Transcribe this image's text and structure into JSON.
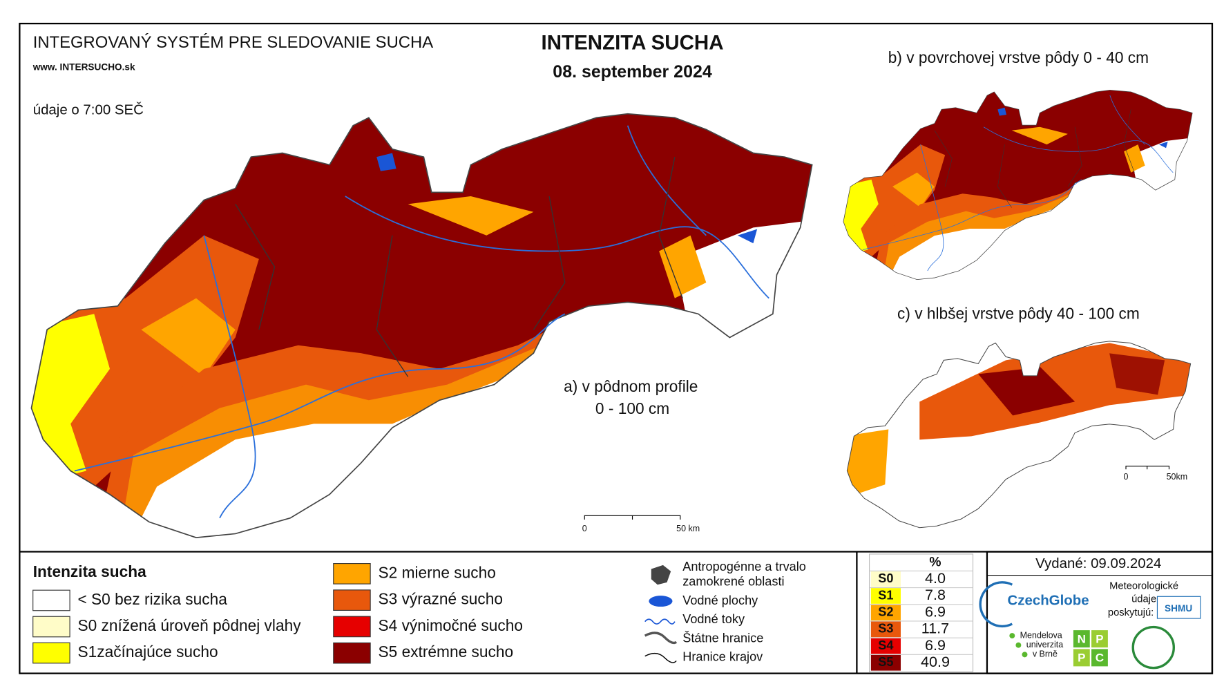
{
  "header": {
    "system_title": "INTEGROVANÝ SYSTÉM PRE SLEDOVANIE SUCHA",
    "website": "www. INTERSUCHO.sk",
    "data_time": "údaje o 7:00 SEČ",
    "title": "INTENZITA SUCHA",
    "date": "08. september 2024"
  },
  "maps": [
    {
      "label": "a) v pôdnom profile",
      "label_line2": "0 - 100 cm",
      "scale_start": "0",
      "scale_end": "50 km"
    },
    {
      "label": "b) v povrchovej vrstve pôdy 0 - 40 cm"
    },
    {
      "label": "c) v hlbšej vrstve pôdy 40 - 100 cm",
      "scale_start": "0",
      "scale_end": "50km"
    }
  ],
  "legend": {
    "title": "Intenzita sucha",
    "items": [
      {
        "label": "< S0 bez rizika sucha",
        "color": "#ffffff"
      },
      {
        "label": "S0 znížená úroveň pôdnej vlahy",
        "color": "#fffcc8"
      },
      {
        "label": "S1začínajúce sucho",
        "color": "#ffff00"
      },
      {
        "label": "S2 mierne sucho",
        "color": "#ffa500"
      },
      {
        "label": "S3 výrazné sucho",
        "color": "#e8580c"
      },
      {
        "label": "S4 výnimočné sucho",
        "color": "#e60000"
      },
      {
        "label": "S5 extrémne sucho",
        "color": "#8b0000"
      }
    ]
  },
  "symbols": [
    {
      "lines": [
        "Antropogénne a trvalo",
        "zamokrené oblasti"
      ]
    },
    {
      "lines": [
        "Vodné plochy"
      ]
    },
    {
      "lines": [
        "Vodné toky"
      ]
    },
    {
      "lines": [
        "Štátne hranice"
      ]
    },
    {
      "lines": [
        "Hranice krajov"
      ]
    }
  ],
  "stats": {
    "header": "%",
    "rows": [
      {
        "class": "S0",
        "percent": "4.0",
        "color": "#fffcc8"
      },
      {
        "class": "S1",
        "percent": "7.8",
        "color": "#ffff00"
      },
      {
        "class": "S2",
        "percent": "6.9",
        "color": "#ffa500"
      },
      {
        "class": "S3",
        "percent": "11.7",
        "color": "#e8580c"
      },
      {
        "class": "S4",
        "percent": "6.9",
        "color": "#e60000"
      },
      {
        "class": "S5",
        "percent": "40.9",
        "color": "#8b0000"
      }
    ]
  },
  "footer": {
    "issued": "Vydané: 09.09.2024",
    "providers_label": [
      "Meteorologické",
      "údaje",
      "poskytujú:"
    ],
    "logos": {
      "czechglobe": "CzechGlobe",
      "mendel": [
        "Mendelova",
        "univerzita",
        "v Brně"
      ],
      "npc": [
        "N",
        "P",
        "P",
        "C"
      ],
      "shmu": "SHMU"
    }
  }
}
